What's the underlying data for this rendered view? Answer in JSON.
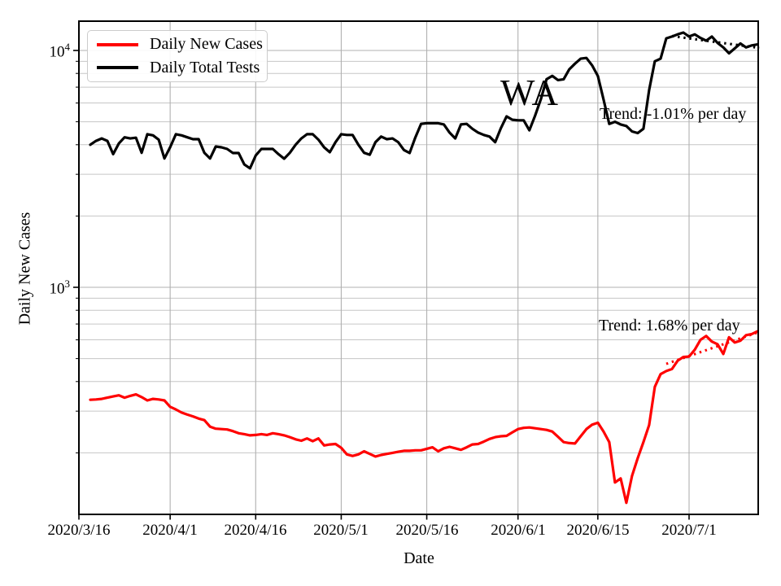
{
  "figure": {
    "background": "#ffffff"
  },
  "annotations": {
    "state_label": "WA",
    "tests_trend": "Trend: -1.01% per day",
    "cases_trend": "Trend: 1.68% per day"
  },
  "legend": {
    "position": "upper left",
    "entries": [
      {
        "label": "Daily New Cases",
        "color": "#ff0000"
      },
      {
        "label": "Daily Total Tests",
        "color": "#000000"
      }
    ]
  },
  "axes": {
    "x": {
      "label": "Date",
      "tick_labels": [
        "2020/3/16",
        "2020/4/1",
        "2020/4/16",
        "2020/5/1",
        "2020/5/16",
        "2020/6/1",
        "2020/6/15",
        "2020/7/1"
      ],
      "tick_days": [
        0,
        16,
        31,
        46,
        61,
        77,
        91,
        107
      ],
      "range_days": [
        0,
        119.3
      ]
    },
    "y": {
      "label": "Daily New Cases",
      "scale": "log",
      "major_ticks": [
        {
          "label_base": "10",
          "label_exp": "3",
          "value": 1000
        },
        {
          "label_base": "10",
          "label_exp": "4",
          "value": 10000
        }
      ],
      "range": [
        110,
        13300
      ]
    }
  },
  "chart_data": {
    "type": "line",
    "title": "WA",
    "grid": true,
    "legend_position": "upper left",
    "x_start_date": "2020/3/18",
    "x_start_day_index": 2,
    "frequency": "daily",
    "y_minor_gridlines": [
      200,
      300,
      400,
      500,
      600,
      700,
      800,
      900,
      2000,
      3000,
      4000,
      5000,
      6000,
      7000,
      8000,
      9000
    ],
    "series": [
      {
        "name": "Daily New Cases",
        "color": "#ff0000",
        "values": [
          335,
          336,
          338,
          342,
          346,
          350,
          342,
          348,
          353,
          344,
          333,
          338,
          336,
          333,
          313,
          305,
          296,
          290,
          285,
          279,
          275,
          258,
          253,
          252,
          251,
          247,
          242,
          240,
          237,
          238,
          240,
          238,
          242,
          240,
          237,
          233,
          228,
          225,
          230,
          224,
          230,
          215,
          217,
          218,
          210,
          197,
          194,
          197,
          203,
          198,
          193,
          196,
          198,
          200,
          202,
          204,
          204,
          205,
          205,
          208,
          211,
          203,
          209,
          212,
          209,
          206,
          211,
          217,
          218,
          223,
          229,
          233,
          235,
          236,
          244,
          252,
          255,
          256,
          254,
          252,
          250,
          246,
          234,
          222,
          220,
          219,
          235,
          252,
          263,
          268,
          246,
          222,
          150,
          156,
          123,
          160,
          190,
          222,
          262,
          380,
          430,
          443,
          452,
          490,
          508,
          510,
          545,
          600,
          623,
          590,
          575,
          523,
          615,
          585,
          595,
          628,
          635,
          652
        ]
      },
      {
        "name": "Daily Total Tests",
        "color": "#000000",
        "values": [
          4000,
          4150,
          4250,
          4150,
          3650,
          4050,
          4300,
          4250,
          4280,
          3700,
          4430,
          4380,
          4200,
          3500,
          3900,
          4430,
          4380,
          4300,
          4220,
          4220,
          3700,
          3500,
          3930,
          3900,
          3840,
          3690,
          3690,
          3300,
          3180,
          3600,
          3840,
          3840,
          3840,
          3650,
          3490,
          3700,
          4000,
          4250,
          4430,
          4430,
          4200,
          3900,
          3720,
          4100,
          4430,
          4400,
          4400,
          4000,
          3700,
          3630,
          4100,
          4330,
          4220,
          4250,
          4100,
          3800,
          3690,
          4300,
          4900,
          4930,
          4930,
          4930,
          4870,
          4500,
          4250,
          4870,
          4900,
          4670,
          4500,
          4400,
          4330,
          4100,
          4700,
          5270,
          5100,
          5070,
          5070,
          4600,
          5300,
          6220,
          7560,
          7810,
          7500,
          7560,
          8330,
          8800,
          9230,
          9300,
          8650,
          7800,
          6200,
          4900,
          5000,
          4870,
          4800,
          4550,
          4480,
          4670,
          6800,
          9000,
          9230,
          11250,
          11450,
          11700,
          11900,
          11450,
          11700,
          11300,
          11000,
          11450,
          10760,
          10300,
          9730,
          10200,
          10700,
          10300,
          10500,
          10600
        ]
      }
    ],
    "trend_lines": [
      {
        "name": "cases-trend",
        "series": "Daily New Cases",
        "color": "#ff0000",
        "style": "dotted",
        "label": "Trend: 1.68% per day",
        "rate_percent_per_day": 1.68,
        "start_day": 103,
        "start_value": 475,
        "end_day": 119.3,
        "end_value": 648
      },
      {
        "name": "tests-trend",
        "series": "Daily Total Tests",
        "color": "#000000",
        "style": "dotted",
        "label": "Trend: -1.01% per day",
        "rate_percent_per_day": -1.01,
        "start_day": 104,
        "start_value": 11500,
        "end_day": 119.3,
        "end_value": 10250
      }
    ]
  }
}
